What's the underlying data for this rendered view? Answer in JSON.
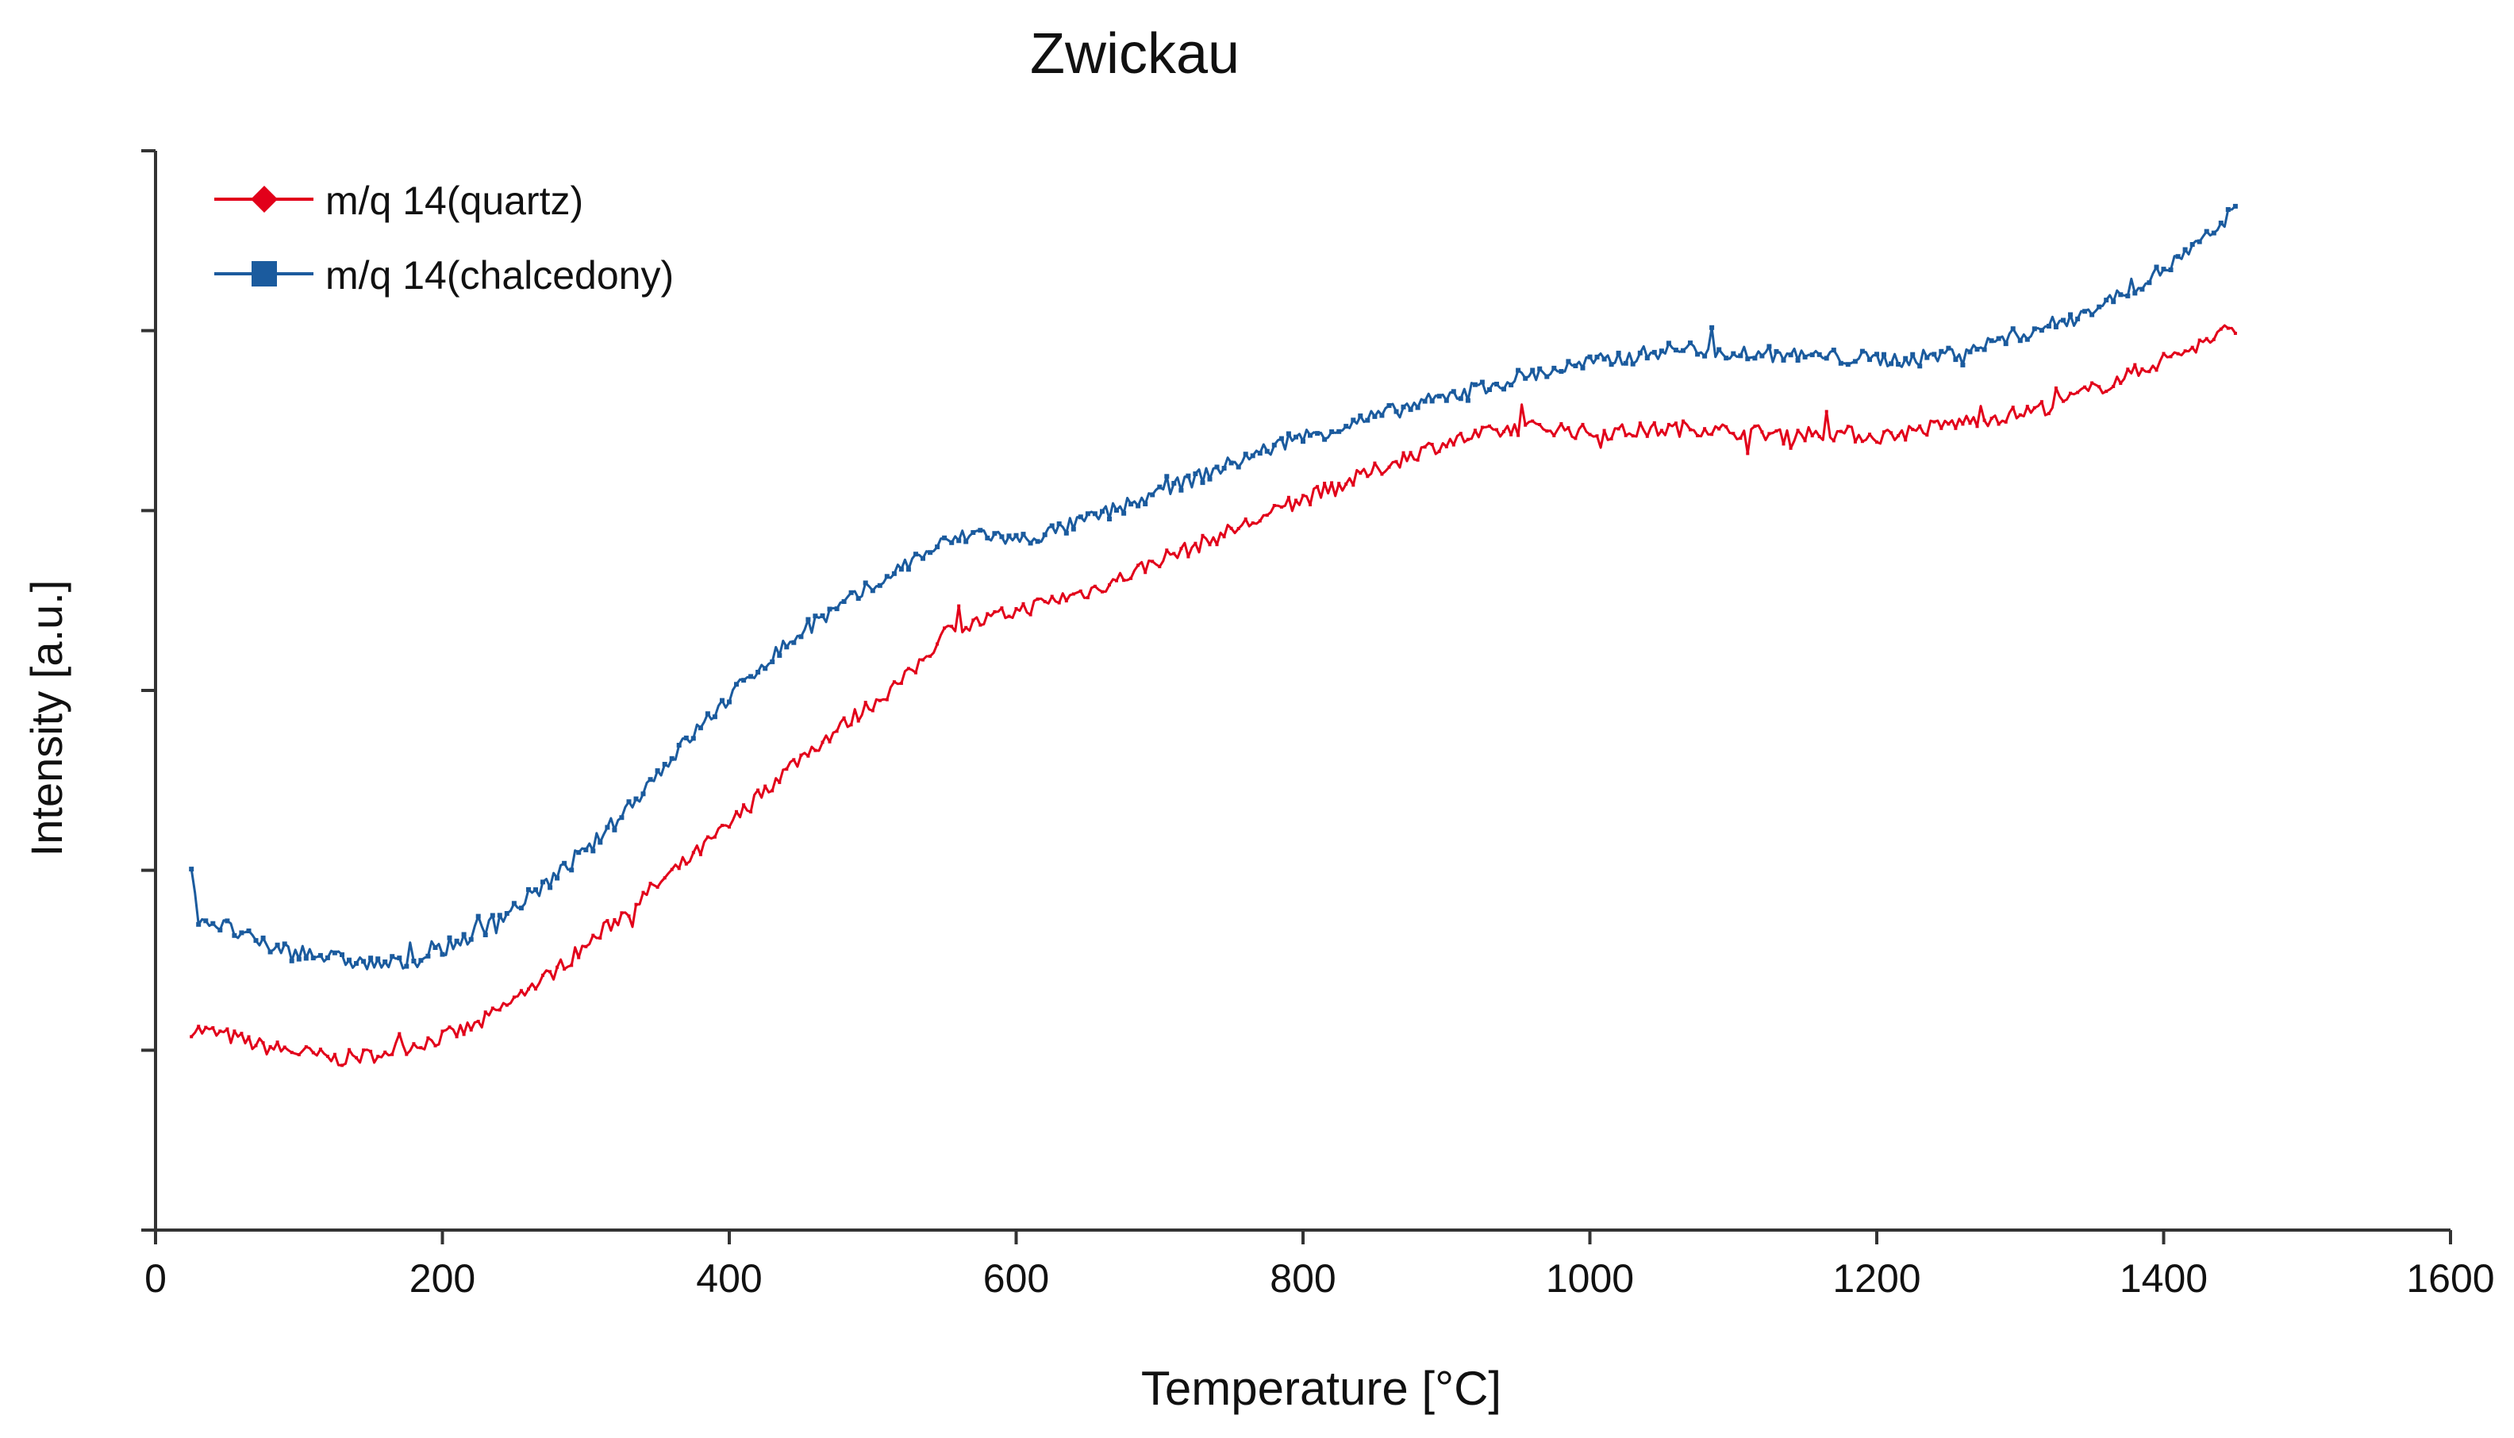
{
  "chart_data": {
    "type": "line",
    "title": "Zwickau",
    "xlabel": "Temperature [°C]",
    "ylabel": "Intensity [a.u.]",
    "xlim": [
      0,
      1600
    ],
    "ylim": [
      0,
      6
    ],
    "x_ticks": [
      0,
      200,
      400,
      600,
      800,
      1000,
      1200,
      1400,
      1600
    ],
    "y_ticks": [
      0,
      1,
      2,
      3,
      4,
      5,
      6
    ],
    "y_tick_labels_shown": false,
    "grid": false,
    "legend_position": "top-left",
    "series": [
      {
        "name": "m/q 14(quartz)",
        "color": "#e2001a",
        "marker": "diamond",
        "x": [
          25,
          50,
          75,
          100,
          125,
          150,
          175,
          200,
          225,
          250,
          275,
          300,
          325,
          350,
          375,
          400,
          425,
          450,
          475,
          500,
          525,
          550,
          575,
          600,
          625,
          650,
          675,
          700,
          725,
          750,
          775,
          800,
          825,
          850,
          875,
          900,
          925,
          950,
          975,
          1000,
          1025,
          1050,
          1075,
          1100,
          1125,
          1150,
          1175,
          1200,
          1225,
          1250,
          1275,
          1300,
          1325,
          1350,
          1375,
          1400,
          1425,
          1440,
          1450
        ],
        "y": [
          1.12,
          1.08,
          1.02,
          0.99,
          0.95,
          0.97,
          1.02,
          1.07,
          1.14,
          1.28,
          1.42,
          1.58,
          1.75,
          1.92,
          2.08,
          2.25,
          2.45,
          2.63,
          2.78,
          2.93,
          3.08,
          3.32,
          3.38,
          3.44,
          3.5,
          3.55,
          3.63,
          3.73,
          3.8,
          3.89,
          3.97,
          4.06,
          4.14,
          4.22,
          4.31,
          4.38,
          4.42,
          4.46,
          4.46,
          4.43,
          4.44,
          4.45,
          4.46,
          4.44,
          4.43,
          4.43,
          4.43,
          4.41,
          4.44,
          4.48,
          4.51,
          4.54,
          4.59,
          4.67,
          4.75,
          4.84,
          4.92,
          4.98,
          5.03
        ]
      },
      {
        "name": "m/q 14(chalcedony)",
        "color": "#1b5b9e",
        "marker": "square",
        "x": [
          25,
          30,
          50,
          75,
          100,
          125,
          150,
          175,
          200,
          225,
          250,
          275,
          300,
          325,
          350,
          375,
          400,
          425,
          450,
          475,
          500,
          525,
          550,
          575,
          600,
          625,
          650,
          675,
          700,
          725,
          750,
          775,
          800,
          825,
          850,
          875,
          900,
          925,
          950,
          975,
          1000,
          1025,
          1050,
          1075,
          1100,
          1125,
          1150,
          1175,
          1200,
          1225,
          1250,
          1275,
          1300,
          1325,
          1350,
          1375,
          1400,
          1425,
          1440,
          1450
        ],
        "y": [
          1.97,
          1.74,
          1.68,
          1.58,
          1.55,
          1.51,
          1.48,
          1.48,
          1.56,
          1.66,
          1.79,
          1.94,
          2.1,
          2.31,
          2.54,
          2.76,
          2.96,
          3.16,
          3.32,
          3.45,
          3.58,
          3.71,
          3.82,
          3.88,
          3.83,
          3.88,
          3.95,
          4.02,
          4.1,
          4.18,
          4.26,
          4.34,
          4.41,
          4.46,
          4.52,
          4.58,
          4.63,
          4.69,
          4.74,
          4.78,
          4.82,
          4.85,
          4.89,
          4.9,
          4.88,
          4.87,
          4.86,
          4.85,
          4.84,
          4.84,
          4.87,
          4.92,
          4.98,
          5.04,
          5.12,
          5.22,
          5.34,
          5.48,
          5.58,
          5.69
        ]
      }
    ]
  }
}
